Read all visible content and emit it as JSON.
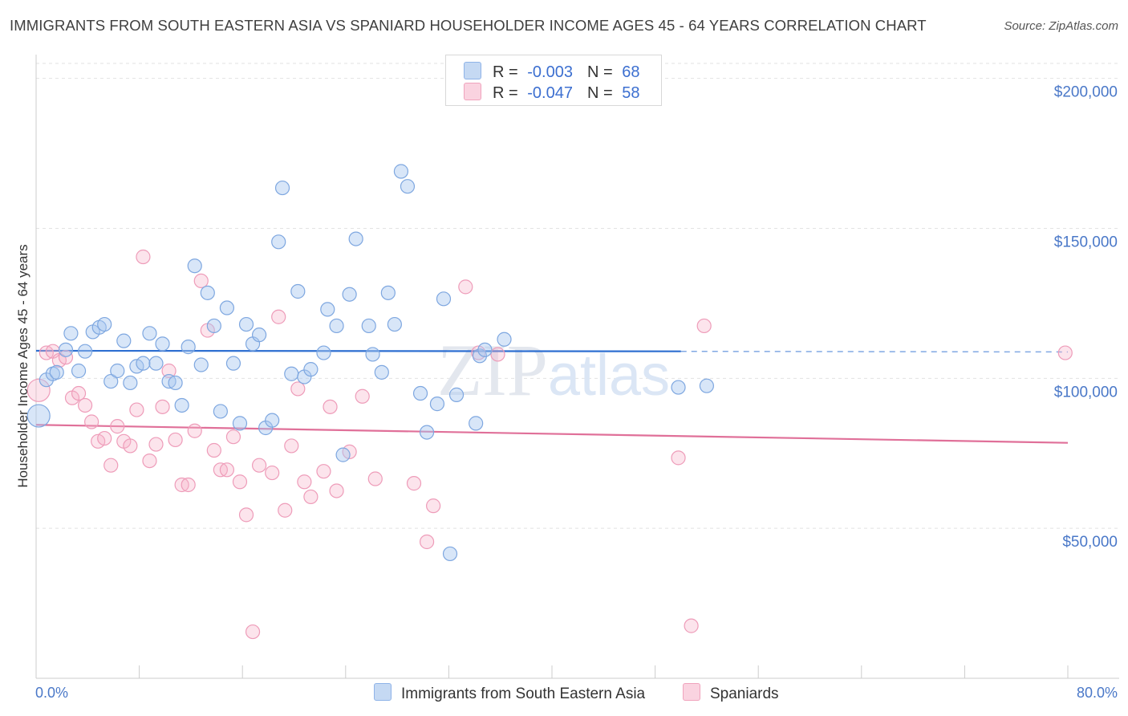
{
  "header": {
    "title": "IMMIGRANTS FROM SOUTH EASTERN ASIA VS SPANIARD HOUSEHOLDER INCOME AGES 45 - 64 YEARS CORRELATION CHART",
    "source": "Source: ZipAtlas.com"
  },
  "legend": {
    "rows": [
      {
        "r_label": "R =",
        "r_value": "-0.003",
        "n_label": "N =",
        "n_value": "68",
        "color": "#a9c8f0"
      },
      {
        "r_label": "R =",
        "r_value": "-0.047",
        "n_label": "N =",
        "n_value": "58",
        "color": "#f5b3c8"
      }
    ]
  },
  "bottom_legend": {
    "blue": "Immigrants from South Eastern Asia",
    "pink": "Spaniards"
  },
  "chart_data": {
    "type": "scatter",
    "ylabel": "Householder Income Ages 45 - 64 years",
    "xlim": [
      0,
      80
    ],
    "ylim": [
      0,
      205000
    ],
    "x_tick_labels": [
      "0.0%",
      "80.0%"
    ],
    "y_ticks": [
      {
        "value": 200000,
        "label": "$200,000"
      },
      {
        "value": 150000,
        "label": "$150,000"
      },
      {
        "value": 100000,
        "label": "$100,000"
      },
      {
        "value": 50000,
        "label": "$50,000"
      }
    ],
    "grid": true,
    "watermark": "ZIPatlas",
    "colors": {
      "blue": "#a9c8f0",
      "blue_line": "#2e6fd1",
      "pink": "#f5b3c8",
      "pink_line": "#e07099"
    },
    "series": [
      {
        "name": "Immigrants from South Eastern Asia",
        "color": "blue",
        "trend": {
          "x0": 0,
          "y0": 109200,
          "x1": 50,
          "y1": 109000,
          "x_dash_end": 80,
          "y_dash_end": 108800
        },
        "points": [
          [
            0.2,
            87500
          ],
          [
            0.8,
            99500
          ],
          [
            1.3,
            101500
          ],
          [
            1.6,
            102000
          ],
          [
            2.3,
            109500
          ],
          [
            2.7,
            115000
          ],
          [
            3.3,
            102500
          ],
          [
            3.8,
            109000
          ],
          [
            4.4,
            115500
          ],
          [
            4.9,
            117000
          ],
          [
            5.3,
            118000
          ],
          [
            5.8,
            99000
          ],
          [
            6.3,
            102500
          ],
          [
            6.8,
            112500
          ],
          [
            7.3,
            98500
          ],
          [
            7.8,
            104000
          ],
          [
            8.3,
            105000
          ],
          [
            8.8,
            115000
          ],
          [
            9.3,
            105000
          ],
          [
            9.8,
            111500
          ],
          [
            10.3,
            99000
          ],
          [
            10.8,
            98500
          ],
          [
            11.3,
            91000
          ],
          [
            11.8,
            110500
          ],
          [
            12.3,
            137500
          ],
          [
            12.8,
            104500
          ],
          [
            13.3,
            128500
          ],
          [
            13.8,
            117500
          ],
          [
            14.3,
            89000
          ],
          [
            14.8,
            123500
          ],
          [
            15.3,
            105000
          ],
          [
            15.8,
            85000
          ],
          [
            16.3,
            118000
          ],
          [
            16.8,
            111500
          ],
          [
            17.3,
            114500
          ],
          [
            17.8,
            83500
          ],
          [
            18.3,
            86000
          ],
          [
            18.8,
            145500
          ],
          [
            19.1,
            163500
          ],
          [
            19.8,
            101500
          ],
          [
            20.3,
            129000
          ],
          [
            20.8,
            100500
          ],
          [
            21.3,
            103000
          ],
          [
            22.3,
            108500
          ],
          [
            22.6,
            123000
          ],
          [
            23.3,
            117500
          ],
          [
            23.8,
            74500
          ],
          [
            24.3,
            128000
          ],
          [
            24.8,
            146500
          ],
          [
            25.8,
            117500
          ],
          [
            26.1,
            108000
          ],
          [
            26.8,
            102000
          ],
          [
            27.3,
            128500
          ],
          [
            27.8,
            118000
          ],
          [
            28.3,
            169000
          ],
          [
            28.8,
            164000
          ],
          [
            29.8,
            95000
          ],
          [
            30.3,
            82000
          ],
          [
            31.1,
            91500
          ],
          [
            31.6,
            126500
          ],
          [
            32.1,
            41500
          ],
          [
            32.6,
            94500
          ],
          [
            34.1,
            85000
          ],
          [
            34.4,
            107500
          ],
          [
            34.8,
            109500
          ],
          [
            36.3,
            113000
          ],
          [
            49.8,
            97000
          ],
          [
            52.0,
            97500
          ]
        ]
      },
      {
        "name": "Spaniards",
        "color": "pink",
        "trend": {
          "x0": 0,
          "y0": 84500,
          "x1": 80,
          "y1": 78500
        },
        "points": [
          [
            0.2,
            96000
          ],
          [
            0.8,
            108500
          ],
          [
            1.3,
            109000
          ],
          [
            1.8,
            106000
          ],
          [
            2.3,
            107000
          ],
          [
            2.8,
            93500
          ],
          [
            3.3,
            95000
          ],
          [
            3.8,
            91000
          ],
          [
            4.3,
            85500
          ],
          [
            4.8,
            79000
          ],
          [
            5.3,
            80000
          ],
          [
            5.8,
            71000
          ],
          [
            6.3,
            84000
          ],
          [
            6.8,
            79000
          ],
          [
            7.3,
            77500
          ],
          [
            7.8,
            89500
          ],
          [
            8.3,
            140500
          ],
          [
            8.8,
            72500
          ],
          [
            9.3,
            78000
          ],
          [
            9.8,
            90500
          ],
          [
            10.3,
            102500
          ],
          [
            10.8,
            79500
          ],
          [
            11.3,
            64500
          ],
          [
            11.8,
            64500
          ],
          [
            12.3,
            82500
          ],
          [
            12.8,
            132500
          ],
          [
            13.3,
            116000
          ],
          [
            13.8,
            76000
          ],
          [
            14.3,
            69500
          ],
          [
            14.8,
            69500
          ],
          [
            15.3,
            80500
          ],
          [
            15.8,
            65500
          ],
          [
            16.3,
            54500
          ],
          [
            16.8,
            15500
          ],
          [
            17.3,
            71000
          ],
          [
            18.3,
            68500
          ],
          [
            18.8,
            120500
          ],
          [
            19.3,
            56000
          ],
          [
            19.8,
            77500
          ],
          [
            20.3,
            96500
          ],
          [
            20.8,
            65500
          ],
          [
            21.3,
            60500
          ],
          [
            22.3,
            69000
          ],
          [
            22.8,
            90500
          ],
          [
            23.3,
            62500
          ],
          [
            24.3,
            75500
          ],
          [
            25.3,
            94000
          ],
          [
            26.3,
            66500
          ],
          [
            29.3,
            65000
          ],
          [
            30.3,
            45500
          ],
          [
            30.8,
            57500
          ],
          [
            33.3,
            130500
          ],
          [
            34.3,
            108500
          ],
          [
            35.8,
            108000
          ],
          [
            49.8,
            73500
          ],
          [
            50.8,
            17500
          ],
          [
            51.8,
            117500
          ],
          [
            79.8,
            108500
          ]
        ]
      }
    ]
  }
}
